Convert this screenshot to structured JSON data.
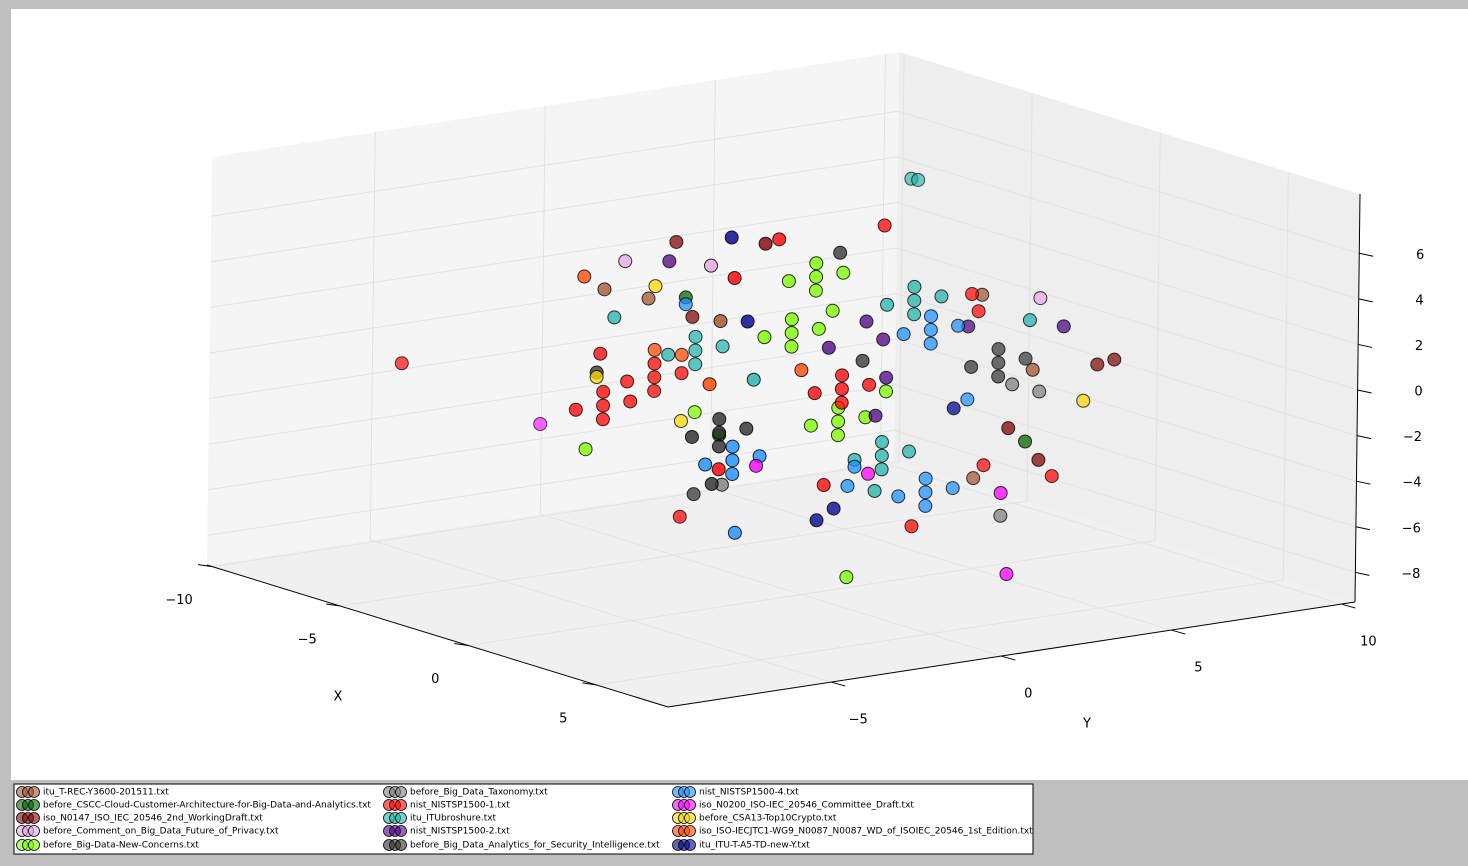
{
  "chart_data": {
    "type": "scatter3d",
    "xlabel": "X",
    "ylabel": "Y",
    "xlim": [
      -10.2,
      7.8
    ],
    "ylim": [
      -9.8,
      10.4
    ],
    "zlim": [
      -9.3,
      8.6
    ],
    "xticks": [
      {
        "value": -10,
        "label": "−10"
      },
      {
        "value": -5,
        "label": "−5"
      },
      0,
      5
    ],
    "yticks": [
      {
        "value": -5,
        "label": "−5"
      },
      0,
      5,
      10
    ],
    "zticks": [
      {
        "value": -8,
        "label": "−8"
      },
      {
        "value": -6,
        "label": "−6"
      },
      {
        "value": -4,
        "label": "−4"
      },
      {
        "value": -2,
        "label": "−2"
      },
      0,
      2,
      4,
      6
    ],
    "grid": true,
    "legend": "lower left",
    "series": [
      {
        "name": "itu_T-REC-Y3600-201511.txt",
        "color": "#a0522d",
        "x": [
          2,
          2,
          -2,
          -2,
          4,
          2
        ],
        "y": [
          -4.0,
          3.7,
          -3.1,
          -4.4,
          3.7,
          3.5
        ],
        "z": [
          4.3,
          3.7,
          3.7,
          4.4,
          1.1,
          -4.3
        ]
      },
      {
        "name": "before_CSCC-Cloud-Customer-Architecture-for-Big-Data-and-Analytics.txt",
        "color": "#006400",
        "x": [
          -2,
          2,
          4
        ],
        "y": [
          -2.0,
          -4.0,
          3.5
        ],
        "z": [
          3.5,
          -0.7,
          -2.0
        ]
      },
      {
        "name": "iso_N0147_ISO_IEC_20546_2nd_WorkingDraft.txt",
        "color": "#800000",
        "x": [
          -2,
          2,
          4,
          4,
          4,
          4,
          -2
        ],
        "y": [
          -2.3,
          -2.7,
          5.6,
          6.1,
          3.0,
          3.9,
          -1.8
        ],
        "z": [
          6.0,
          7.4,
          0.9,
          1.0,
          -1.3,
          -2.9,
          2.6
        ]
      },
      {
        "name": "before_Comment_on_Big_Data_Future_of_Privacy.txt",
        "color": "#e3a8e3",
        "x": [
          2,
          4,
          -2
        ],
        "y": [
          -4.3,
          3.9,
          -3.8
        ],
        "z": [
          6.8,
          4.2,
          5.5
        ]
      },
      {
        "name": "before_Big-Data-New-Concerns.txt",
        "color": "#7cfc00",
        "x": [
          2,
          2,
          2,
          2,
          2,
          2,
          2,
          2,
          2,
          2,
          2,
          2,
          2,
          2,
          2,
          -2,
          -2,
          2,
          2,
          2
        ],
        "y": [
          -2.0,
          -0.4,
          -1.2,
          -1.2,
          -1.2,
          -2.7,
          -1.1,
          -1.9,
          -1.9,
          -1.9,
          -1.3,
          0.3,
          -0.5,
          -0.5,
          -0.5,
          -4.9,
          -1.7,
          -0.2,
          0.9,
          -0.7
        ],
        "z": [
          5.6,
          5.6,
          5.0,
          6.2,
          5.6,
          3.3,
          3.3,
          2.7,
          3.9,
          3.3,
          -0.9,
          -0.9,
          -1.5,
          -0.3,
          -0.9,
          -2.5,
          -1.6,
          -7.8,
          0.1,
          4.0
        ]
      },
      {
        "name": "before_Big_Data_Taxonomy.txt",
        "color": "#808080",
        "x": [
          4,
          4,
          4,
          2
        ],
        "y": [
          3.1,
          3.9,
          2.8,
          -3.9
        ],
        "z": [
          0.6,
          0.1,
          -5.1,
          -2.9
        ]
      },
      {
        "name": "nist_NISTSP1500-1.txt",
        "color": "#ff0000",
        "x": [
          -2,
          -2,
          -2,
          -2,
          -2,
          -2,
          -2,
          -2,
          -2,
          -2,
          2,
          2,
          2,
          2,
          2,
          2,
          2,
          -2,
          2,
          2,
          4,
          2,
          2,
          -8,
          2,
          2,
          -2,
          2
        ],
        "y": [
          -3.7,
          -2.1,
          -2.9,
          -2.9,
          -2.9,
          -5.2,
          -3.6,
          -4.4,
          -4.4,
          -4.4,
          -1.2,
          0.4,
          -0.4,
          -0.4,
          -0.4,
          0.8,
          -2.3,
          -2.1,
          -4.0,
          3.8,
          4.3,
          -0.9,
          1.7,
          -5.8,
          3.6,
          -3.6,
          -4.5,
          3.4
        ],
        "z": [
          0.2,
          0.2,
          -0.4,
          0.8,
          0.2,
          -0.7,
          -0.7,
          -1.3,
          -0.1,
          -0.7,
          0.5,
          0.5,
          -0.1,
          1.1,
          0.5,
          7.4,
          7.5,
          -6.1,
          -2.2,
          -3.8,
          -3.7,
          -3.6,
          -6.0,
          -0.6,
          3.0,
          6.1,
          1.6,
          3.8
        ]
      },
      {
        "name": "itu_ITUbroshure.txt",
        "color": "#20b2aa",
        "x": [
          -2,
          -2,
          -2,
          -2,
          -2,
          2,
          2,
          2,
          2,
          2,
          2,
          2,
          2,
          2,
          2,
          -2,
          -2,
          -2,
          4,
          2,
          2
        ],
        "y": [
          -2.5,
          -0.9,
          -1.7,
          -1.7,
          -1.7,
          0.9,
          2.5,
          1.7,
          1.7,
          1.7,
          0.0,
          1.6,
          0.8,
          0.8,
          0.8,
          4.6,
          4.8,
          -4.1,
          3.6,
          0.6,
          -3.0
        ],
        "z": [
          1.1,
          1.1,
          0.5,
          1.7,
          1.1,
          3.9,
          3.9,
          3.3,
          4.5,
          3.9,
          -2.7,
          -2.7,
          -3.3,
          -2.1,
          -2.7,
          7.2,
          7.1,
          3.1,
          3.3,
          -4.2,
          1.5
        ]
      },
      {
        "name": "nist_NISTSP1500-2.txt",
        "color": "#4b0082",
        "x": [
          -2,
          2,
          2,
          2,
          2,
          2,
          4,
          2
        ],
        "y": [
          -2.5,
          0.8,
          3.3,
          -0.8,
          0.6,
          0.3,
          4.6,
          0.9
        ],
        "z": [
          5.2,
          2.4,
          2.4,
          2.4,
          -0.9,
          3.3,
          2.8,
          0.7
        ]
      },
      {
        "name": "before_Big_Data_Analytics_for_Security_Intelligence.txt",
        "color": "#2f2f2f",
        "x": [
          2,
          2,
          2,
          2,
          2,
          2,
          2,
          2,
          2,
          2,
          2,
          -2,
          2,
          -2,
          2
        ],
        "y": [
          -4.8,
          -3.2,
          -4.0,
          -4.0,
          -4.0,
          3.4,
          5.0,
          4.2,
          4.2,
          4.2,
          -0.5,
          -1.7,
          -4.2,
          -4.6,
          0.2
        ],
        "z": [
          -0.6,
          -0.6,
          -1.2,
          0.0,
          -0.6,
          0.6,
          0.6,
          0.0,
          1.2,
          0.6,
          6.5,
          -5.2,
          -2.8,
          0.8,
          1.6
        ]
      },
      {
        "name": "nist_NISTSP1500-4.txt",
        "color": "#1e90ff",
        "x": [
          2,
          2,
          2,
          2,
          2,
          2,
          2,
          2,
          2,
          2,
          2,
          2,
          2,
          2,
          2,
          -2,
          2,
          2,
          2,
          2
        ],
        "y": [
          1.4,
          3.0,
          2.2,
          2.2,
          2.2,
          -4.4,
          -2.8,
          -3.6,
          -3.6,
          -3.6,
          1.3,
          2.9,
          2.1,
          2.1,
          2.1,
          -2.0,
          -0.2,
          0.0,
          3.3,
          -3.5
        ],
        "z": [
          2.5,
          2.5,
          1.9,
          3.1,
          2.5,
          -1.9,
          -1.9,
          -2.5,
          -1.3,
          -1.9,
          -4.6,
          -4.6,
          -5.2,
          -4.0,
          -4.6,
          3.2,
          -3.8,
          -3.0,
          -0.8,
          -5.1
        ]
      },
      {
        "name": "iso_N0200_ISO-IEC_20546_Committee_Draft.txt",
        "color": "#ff00ff",
        "x": [
          -8,
          4,
          4,
          2,
          2
        ],
        "y": [
          -1.7,
          2.8,
          3.0,
          0.4,
          -2.9
        ],
        "z": [
          -4.2,
          -4.1,
          -7.7,
          -3.4,
          -2.3
        ]
      },
      {
        "name": "before_CSA13-Top10Crypto.txt",
        "color": "#ffd700",
        "x": [
          -2,
          4,
          -2,
          -2
        ],
        "y": [
          -2.9,
          5.2,
          -2.1,
          -4.6
        ],
        "z": [
          4.2,
          -0.6,
          -1.9,
          0.6
        ]
      },
      {
        "name": "iso_ISO-IECJTC1-WG9_N0087_N0087_WD_of_ISOIEC_20546_1st_Edition.txt",
        "color": "#ff4500",
        "x": [
          -2,
          -2,
          -2,
          2,
          2
        ],
        "y": [
          -5.0,
          -2.9,
          -2.1,
          -4.3,
          -1.6
        ],
        "z": [
          5.1,
          1.4,
          1.0,
          1.6,
          1.6
        ]
      },
      {
        "name": "itu_ITU-T-A5-TD-new-Y.txt",
        "color": "#00008b",
        "x": [
          2,
          2,
          2,
          2,
          2
        ],
        "y": [
          -3.7,
          2.9,
          -1.1,
          -0.6,
          -3.2
        ],
        "z": [
          7.9,
          -1.1,
          -5.1,
          -4.7,
          4.1
        ]
      }
    ]
  }
}
